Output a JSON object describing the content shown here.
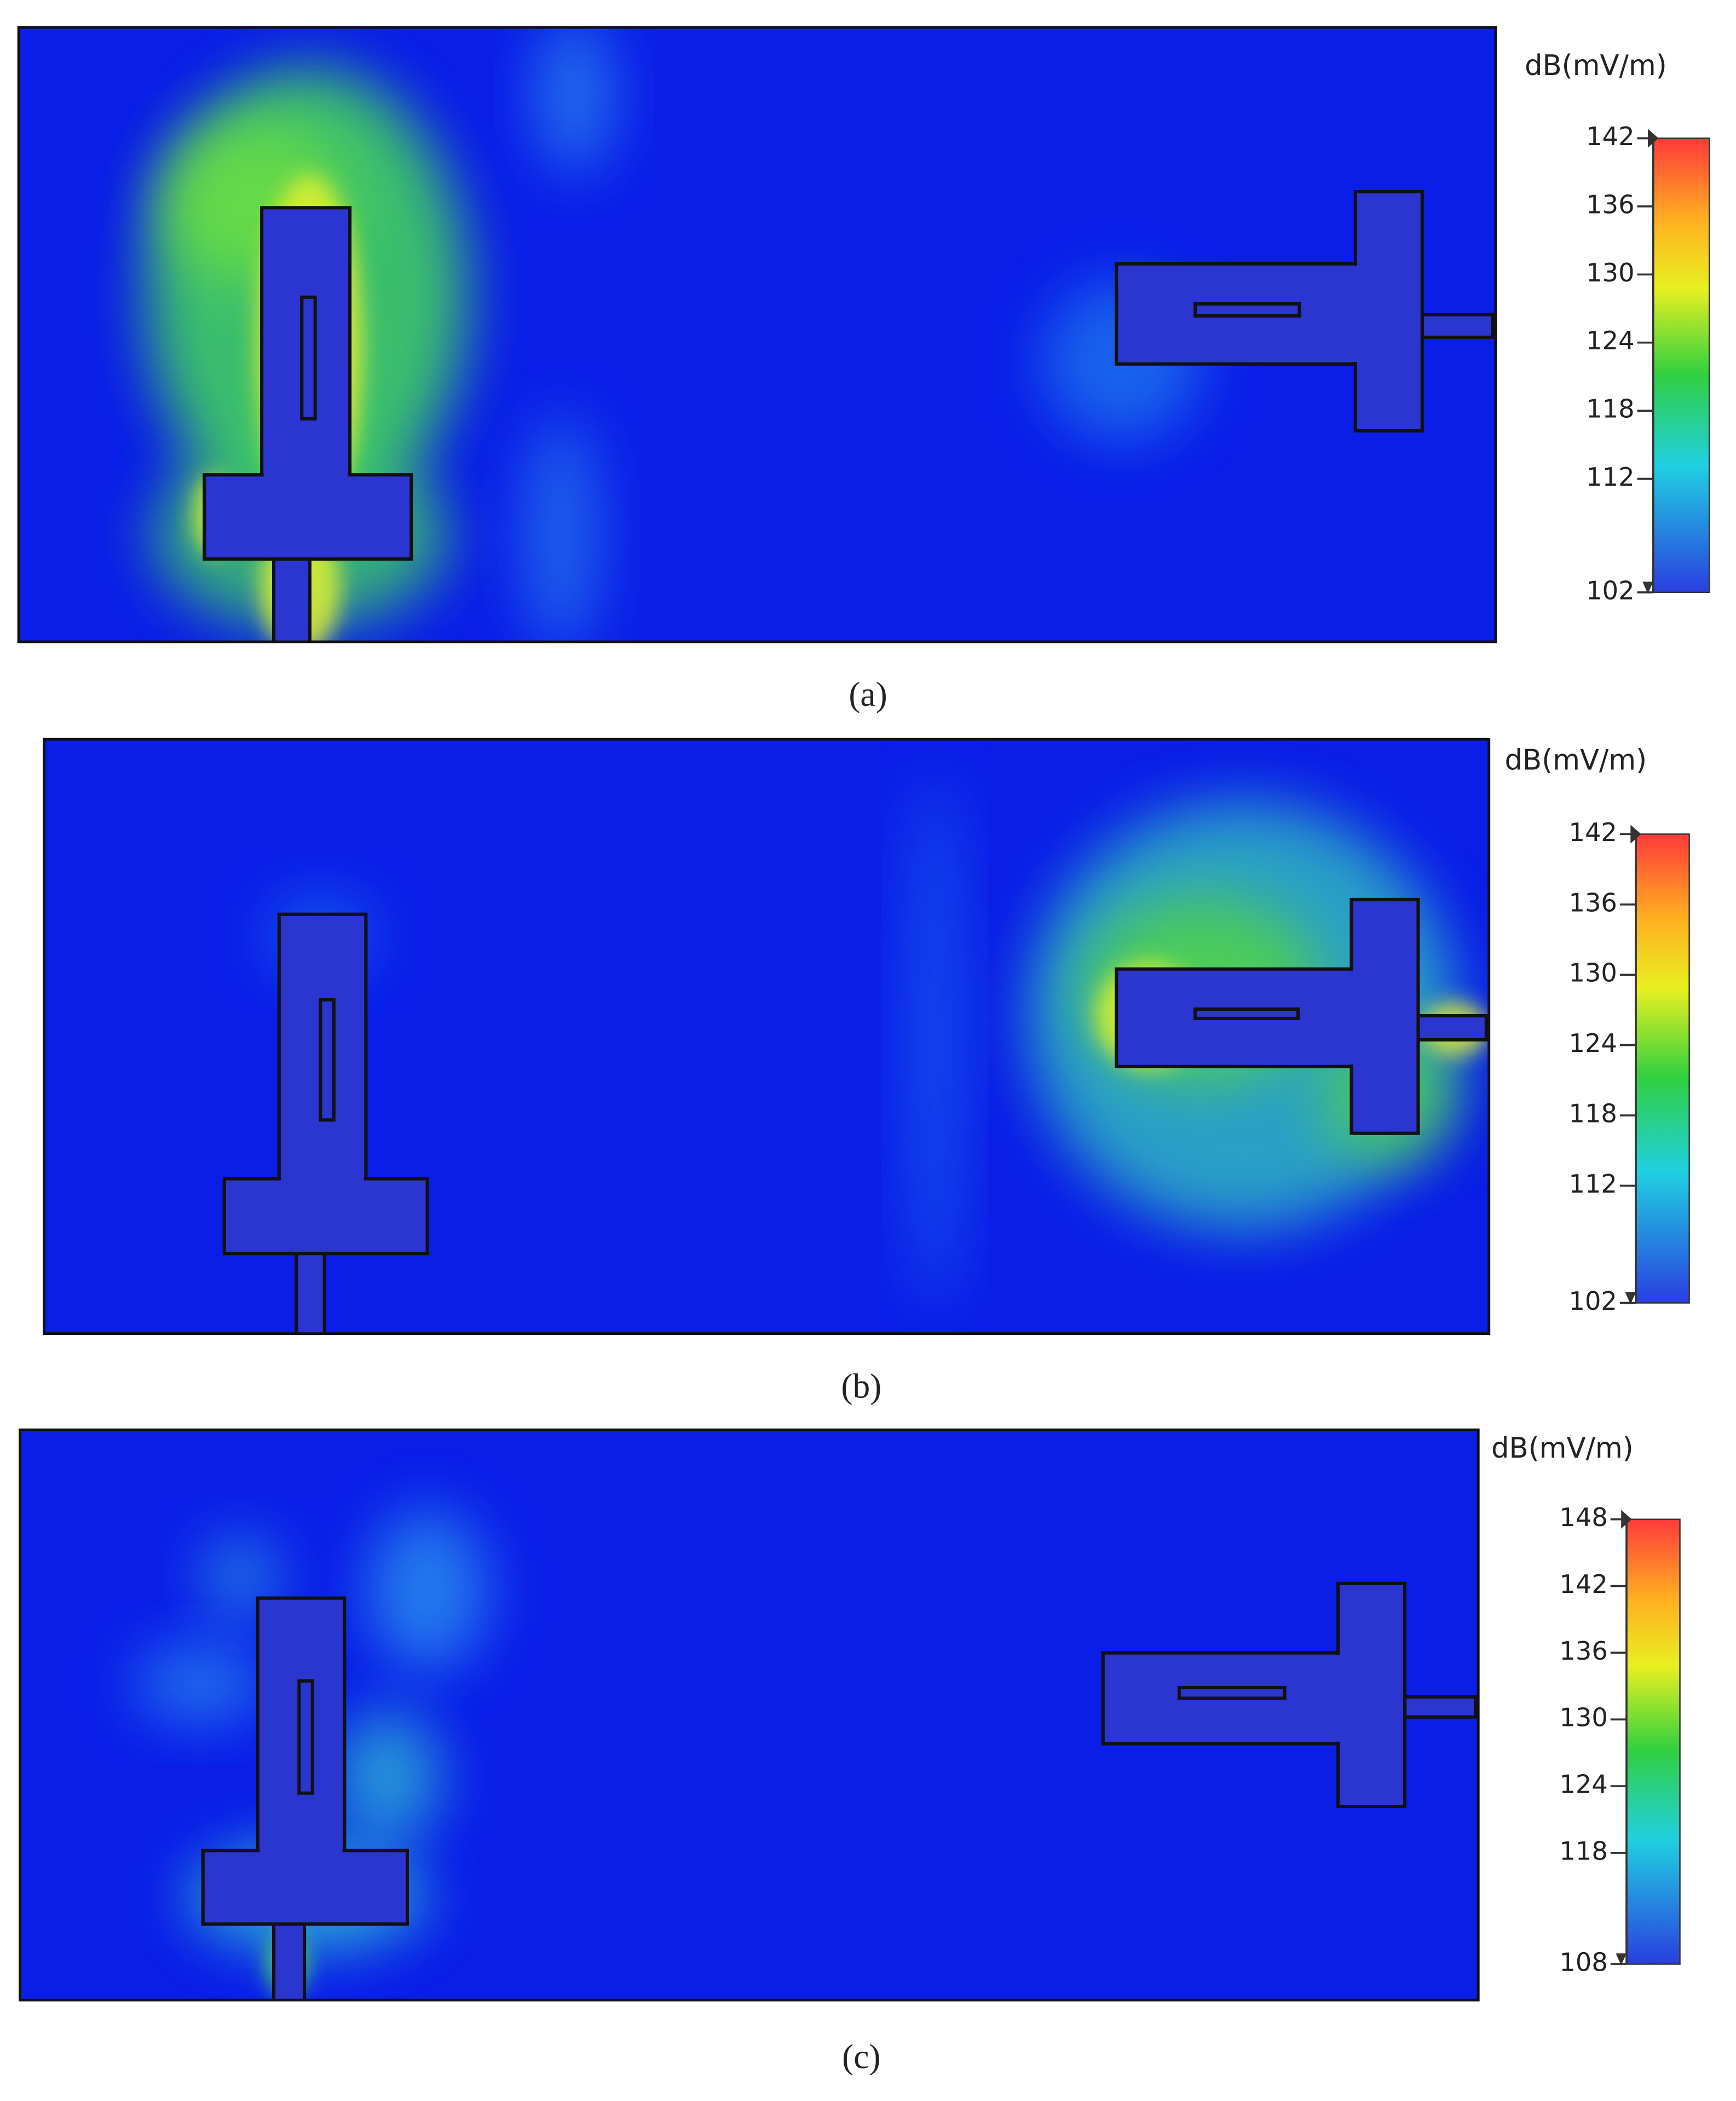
{
  "panels": [
    {
      "unit": "dB(mV/m)",
      "colorbar": {
        "lim": [
          102,
          142
        ],
        "ticks": [
          102,
          112,
          118,
          124,
          130,
          136,
          142
        ]
      },
      "caption": "(a)"
    },
    {
      "unit": "dB(mV/m)",
      "colorbar": {
        "lim": [
          102,
          142
        ],
        "ticks": [
          102,
          112,
          118,
          124,
          130,
          136,
          142
        ]
      },
      "caption": "(b)"
    },
    {
      "unit": "dB(mV/m)",
      "colorbar": {
        "lim": [
          108,
          148
        ],
        "ticks": [
          108,
          118,
          124,
          130,
          136,
          142,
          148
        ]
      },
      "caption": "(c)"
    }
  ]
}
